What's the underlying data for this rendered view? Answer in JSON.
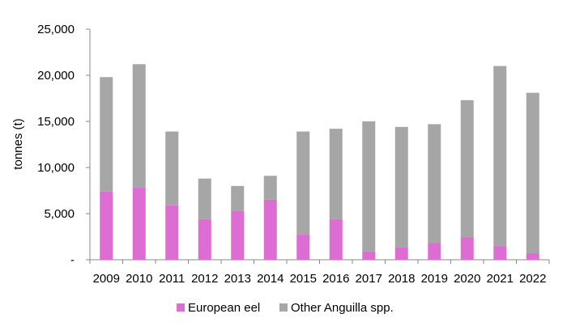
{
  "chart_data": {
    "type": "bar",
    "stacked": true,
    "ylabel": "tonnes (t)",
    "ylim": [
      0,
      25000
    ],
    "yticks": [
      {
        "value": 0,
        "label": "-"
      },
      {
        "value": 5000,
        "label": "5,000"
      },
      {
        "value": 10000,
        "label": "10,000"
      },
      {
        "value": 15000,
        "label": "15,000"
      },
      {
        "value": 20000,
        "label": "20,000"
      },
      {
        "value": 25000,
        "label": "25,000"
      }
    ],
    "grid": false,
    "legend_position": "bottom",
    "categories": [
      "2009",
      "2010",
      "2011",
      "2012",
      "2013",
      "2014",
      "2015",
      "2016",
      "2017",
      "2018",
      "2019",
      "2020",
      "2021",
      "2022"
    ],
    "series": [
      {
        "name": "European eel",
        "color": "#dd6cd3",
        "values": [
          7400,
          7800,
          5900,
          4400,
          5300,
          6500,
          2750,
          4400,
          900,
          1350,
          1800,
          2450,
          1450,
          700
        ]
      },
      {
        "name": "Other Anguilla spp.",
        "color": "#a6a6a6",
        "values": [
          12400,
          13400,
          8000,
          4400,
          2700,
          2600,
          11150,
          9800,
          14100,
          13050,
          12900,
          14850,
          19550,
          17400
        ]
      }
    ]
  }
}
